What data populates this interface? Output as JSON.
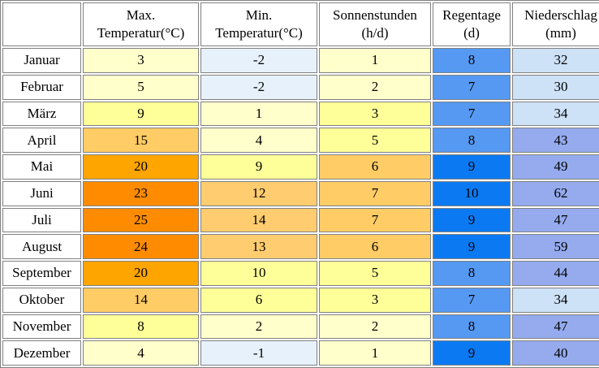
{
  "table": {
    "headers": [
      {
        "line1": "",
        "line2": ""
      },
      {
        "line1": "Max.",
        "line2": "Temperatur(°C)"
      },
      {
        "line1": "Min.",
        "line2": "Temperatur(°C)"
      },
      {
        "line1": "Sonnenstunden",
        "line2": "(h/d)"
      },
      {
        "line1": "Regentage",
        "line2": "(d)"
      },
      {
        "line1": "Niederschlag",
        "line2": "(mm)"
      }
    ],
    "rows": [
      {
        "month": "Januar",
        "cells": [
          {
            "value": "3",
            "bg": "#FFFFCC"
          },
          {
            "value": "-2",
            "bg": "#E7F1FB"
          },
          {
            "value": "1",
            "bg": "#FFFFCC"
          },
          {
            "value": "8",
            "bg": "#5599F2"
          },
          {
            "value": "32",
            "bg": "#CDE1F7"
          }
        ]
      },
      {
        "month": "Februar",
        "cells": [
          {
            "value": "5",
            "bg": "#FFFFCC"
          },
          {
            "value": "-2",
            "bg": "#E7F1FB"
          },
          {
            "value": "2",
            "bg": "#FFFFCC"
          },
          {
            "value": "7",
            "bg": "#5599F2"
          },
          {
            "value": "30",
            "bg": "#CDE1F7"
          }
        ]
      },
      {
        "month": "März",
        "cells": [
          {
            "value": "9",
            "bg": "#FFFF99"
          },
          {
            "value": "1",
            "bg": "#FFFFCC"
          },
          {
            "value": "3",
            "bg": "#FFFF99"
          },
          {
            "value": "7",
            "bg": "#5599F2"
          },
          {
            "value": "34",
            "bg": "#CDE1F7"
          }
        ]
      },
      {
        "month": "April",
        "cells": [
          {
            "value": "15",
            "bg": "#FFCC66"
          },
          {
            "value": "4",
            "bg": "#FFFFCC"
          },
          {
            "value": "5",
            "bg": "#FFFF99"
          },
          {
            "value": "8",
            "bg": "#5599F2"
          },
          {
            "value": "43",
            "bg": "#95ABEE"
          }
        ]
      },
      {
        "month": "Mai",
        "cells": [
          {
            "value": "20",
            "bg": "#FFA500"
          },
          {
            "value": "9",
            "bg": "#FFFF99"
          },
          {
            "value": "6",
            "bg": "#FFCC66"
          },
          {
            "value": "9",
            "bg": "#0B7AF2"
          },
          {
            "value": "49",
            "bg": "#95ABEE"
          }
        ]
      },
      {
        "month": "Juni",
        "cells": [
          {
            "value": "23",
            "bg": "#FF8C00"
          },
          {
            "value": "12",
            "bg": "#FFCC70"
          },
          {
            "value": "7",
            "bg": "#FFCC66"
          },
          {
            "value": "10",
            "bg": "#0B7AF2"
          },
          {
            "value": "62",
            "bg": "#95ABEE"
          }
        ]
      },
      {
        "month": "Juli",
        "cells": [
          {
            "value": "25",
            "bg": "#FF8C00"
          },
          {
            "value": "14",
            "bg": "#FFCC70"
          },
          {
            "value": "7",
            "bg": "#FFCC66"
          },
          {
            "value": "9",
            "bg": "#0B7AF2"
          },
          {
            "value": "47",
            "bg": "#95ABEE"
          }
        ]
      },
      {
        "month": "August",
        "cells": [
          {
            "value": "24",
            "bg": "#FF8C00"
          },
          {
            "value": "13",
            "bg": "#FFCC70"
          },
          {
            "value": "6",
            "bg": "#FFCC66"
          },
          {
            "value": "9",
            "bg": "#0B7AF2"
          },
          {
            "value": "59",
            "bg": "#95ABEE"
          }
        ]
      },
      {
        "month": "September",
        "cells": [
          {
            "value": "20",
            "bg": "#FFA500"
          },
          {
            "value": "10",
            "bg": "#FFFF99"
          },
          {
            "value": "5",
            "bg": "#FFFF99"
          },
          {
            "value": "8",
            "bg": "#5599F2"
          },
          {
            "value": "44",
            "bg": "#95ABEE"
          }
        ]
      },
      {
        "month": "Oktober",
        "cells": [
          {
            "value": "14",
            "bg": "#FFCC66"
          },
          {
            "value": "6",
            "bg": "#FFFF99"
          },
          {
            "value": "3",
            "bg": "#FFFF99"
          },
          {
            "value": "7",
            "bg": "#5599F2"
          },
          {
            "value": "34",
            "bg": "#CDE1F7"
          }
        ]
      },
      {
        "month": "November",
        "cells": [
          {
            "value": "8",
            "bg": "#FFFF99"
          },
          {
            "value": "2",
            "bg": "#FFFFCC"
          },
          {
            "value": "2",
            "bg": "#FFFFCC"
          },
          {
            "value": "8",
            "bg": "#5599F2"
          },
          {
            "value": "47",
            "bg": "#95ABEE"
          }
        ]
      },
      {
        "month": "Dezember",
        "cells": [
          {
            "value": "4",
            "bg": "#FFFFCC"
          },
          {
            "value": "-1",
            "bg": "#E7F1FB"
          },
          {
            "value": "1",
            "bg": "#FFFFCC"
          },
          {
            "value": "9",
            "bg": "#0B7AF2"
          },
          {
            "value": "40",
            "bg": "#95ABEE"
          }
        ]
      }
    ]
  },
  "chart_data": {
    "type": "table",
    "columns": [
      "",
      "Max. Temperatur(°C)",
      "Min. Temperatur(°C)",
      "Sonnenstunden (h/d)",
      "Regentage (d)",
      "Niederschlag (mm)"
    ],
    "categories": [
      "Januar",
      "Februar",
      "März",
      "April",
      "Mai",
      "Juni",
      "Juli",
      "August",
      "September",
      "Oktober",
      "November",
      "Dezember"
    ],
    "series": [
      {
        "name": "Max. Temperatur(°C)",
        "values": [
          3,
          5,
          9,
          15,
          20,
          23,
          25,
          24,
          20,
          14,
          8,
          4
        ]
      },
      {
        "name": "Min. Temperatur(°C)",
        "values": [
          -2,
          -2,
          1,
          4,
          9,
          12,
          14,
          13,
          10,
          6,
          2,
          -1
        ]
      },
      {
        "name": "Sonnenstunden (h/d)",
        "values": [
          1,
          2,
          3,
          5,
          6,
          7,
          7,
          6,
          5,
          3,
          2,
          1
        ]
      },
      {
        "name": "Regentage (d)",
        "values": [
          8,
          7,
          7,
          8,
          9,
          10,
          9,
          9,
          8,
          7,
          8,
          9
        ]
      },
      {
        "name": "Niederschlag (mm)",
        "values": [
          32,
          30,
          34,
          43,
          49,
          62,
          47,
          59,
          44,
          34,
          47,
          40
        ]
      }
    ],
    "cell_color_legend": {
      "temp_below_zero": "#E7F1FB",
      "temp_1_to_5": "#FFFFCC",
      "temp_6_to_10": "#FFFF99",
      "temp_11_to_15": "#FFCC66",
      "temp_16_to_20": "#FFA500",
      "temp_21_to_25": "#FF8C00",
      "rain_days_7_8": "#5599F2",
      "rain_days_9_10": "#0B7AF2",
      "precip_30_34": "#CDE1F7",
      "precip_40_62": "#95ABEE"
    },
    "border_color": "#808080",
    "grid": true
  }
}
